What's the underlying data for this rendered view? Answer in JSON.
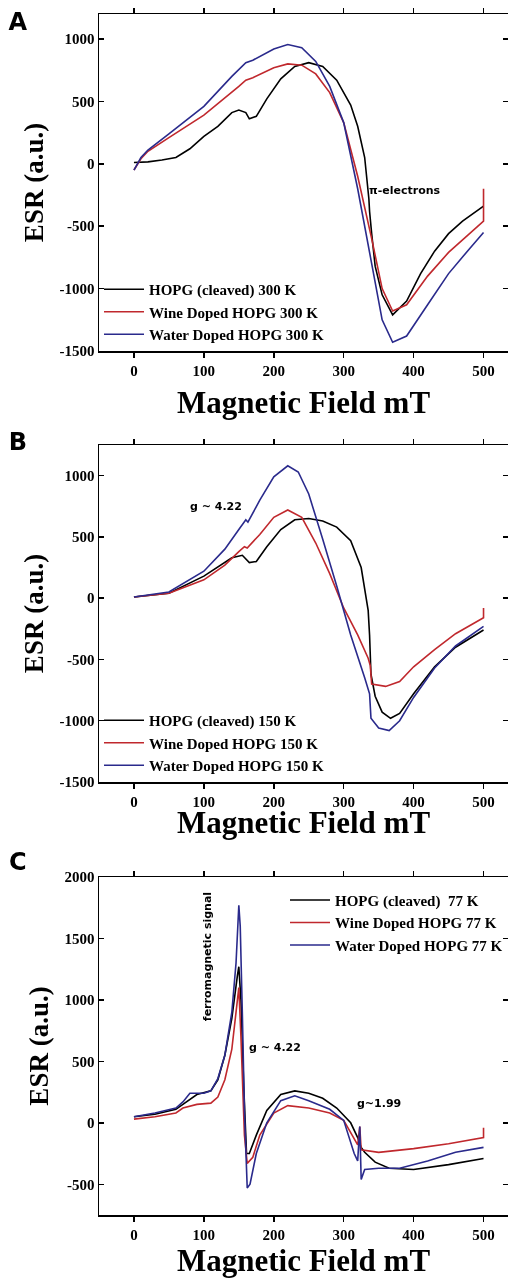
{
  "chart_data": [
    {
      "type": "line",
      "title": "A",
      "xlabel": "Magnetic Field mT",
      "ylabel": "ESR (a.u.)",
      "xlim": [
        -50,
        535
      ],
      "ylim": [
        -1500,
        1200
      ],
      "xticks": [
        0,
        100,
        200,
        300,
        400,
        500
      ],
      "yticks": [
        -1500,
        -1000,
        -500,
        0,
        500,
        1000
      ],
      "grid": false,
      "legend": "bottom left",
      "marker": "none",
      "line_style": "solid",
      "annotations": [
        "π-electrons"
      ],
      "series": [
        {
          "name": "HOPG (cleaved) 300 K",
          "color": "#000000",
          "x": [
            0,
            20,
            40,
            60,
            80,
            100,
            120,
            140,
            150,
            160,
            165,
            175,
            190,
            210,
            230,
            250,
            270,
            290,
            310,
            320,
            330,
            336,
            337,
            340,
            345,
            355,
            370,
            390,
            410,
            430,
            450,
            470,
            500
          ],
          "values": [
            10,
            15,
            30,
            50,
            120,
            220,
            300,
            410,
            430,
            410,
            360,
            380,
            520,
            680,
            780,
            810,
            780,
            670,
            470,
            300,
            50,
            -280,
            -380,
            -560,
            -820,
            -1050,
            -1210,
            -1100,
            -880,
            -700,
            -560,
            -460,
            -340
          ]
        },
        {
          "name": "Wine Doped HOPG 300 K",
          "color": "#c0282d",
          "x": [
            0,
            10,
            20,
            50,
            100,
            150,
            160,
            170,
            200,
            220,
            240,
            260,
            280,
            300,
            320,
            340,
            355,
            370,
            390,
            420,
            450,
            480,
            500,
            500
          ],
          "values": [
            -50,
            40,
            100,
            210,
            390,
            620,
            670,
            690,
            770,
            800,
            790,
            720,
            570,
            330,
            -100,
            -600,
            -1000,
            -1180,
            -1130,
            -900,
            -710,
            -560,
            -460,
            -200
          ]
        },
        {
          "name": "Water Doped HOPG 300 K",
          "color": "#2a2a8c",
          "x": [
            0,
            10,
            20,
            50,
            100,
            140,
            160,
            170,
            200,
            220,
            240,
            260,
            280,
            300,
            320,
            340,
            355,
            370,
            390,
            420,
            450,
            480,
            500
          ],
          "values": [
            -50,
            50,
            110,
            240,
            460,
            700,
            810,
            830,
            920,
            955,
            930,
            820,
            620,
            330,
            -200,
            -800,
            -1250,
            -1430,
            -1380,
            -1130,
            -880,
            -680,
            -550
          ]
        }
      ]
    },
    {
      "type": "line",
      "title": "B",
      "xlabel": "Magnetic Field mT",
      "ylabel": "ESR (a.u.)",
      "xlim": [
        -50,
        535
      ],
      "ylim": [
        -1500,
        1250
      ],
      "xticks": [
        0,
        100,
        200,
        300,
        400,
        500
      ],
      "yticks": [
        -1500,
        -1000,
        -500,
        0,
        500,
        1000
      ],
      "grid": false,
      "legend": "bottom left",
      "marker": "none",
      "line_style": "solid",
      "annotations": [
        "g ~ 4.22"
      ],
      "series": [
        {
          "name": "HOPG (cleaved) 150 K",
          "color": "#000000",
          "x": [
            0,
            50,
            100,
            140,
            155,
            165,
            175,
            190,
            210,
            230,
            250,
            270,
            290,
            310,
            325,
            335,
            337,
            339,
            345,
            355,
            367,
            380,
            400,
            430,
            460,
            500
          ],
          "values": [
            10,
            40,
            180,
            330,
            350,
            290,
            300,
            420,
            560,
            640,
            650,
            630,
            580,
            470,
            250,
            -100,
            -300,
            -620,
            -800,
            -930,
            -980,
            -940,
            -780,
            -560,
            -400,
            -260
          ]
        },
        {
          "name": "Wine Doped HOPG 150 K",
          "color": "#c0282d",
          "x": [
            0,
            50,
            100,
            130,
            150,
            158,
            162,
            180,
            200,
            220,
            240,
            260,
            280,
            300,
            320,
            335,
            338,
            340,
            360,
            380,
            400,
            430,
            460,
            500,
            500
          ],
          "values": [
            10,
            40,
            150,
            270,
            380,
            420,
            410,
            520,
            660,
            720,
            660,
            450,
            200,
            -80,
            -300,
            -490,
            -550,
            -700,
            -720,
            -680,
            -560,
            -420,
            -290,
            -160,
            -80
          ]
        },
        {
          "name": "Water Doped HOPG 150 K",
          "color": "#2a2a8c",
          "x": [
            0,
            50,
            100,
            130,
            150,
            160,
            163,
            180,
            200,
            220,
            235,
            250,
            270,
            290,
            310,
            330,
            337,
            339,
            350,
            365,
            380,
            400,
            430,
            460,
            500
          ],
          "values": [
            10,
            50,
            220,
            400,
            560,
            640,
            620,
            800,
            990,
            1080,
            1030,
            850,
            480,
            100,
            -300,
            -650,
            -780,
            -980,
            -1060,
            -1080,
            -1000,
            -810,
            -570,
            -390,
            -230
          ]
        }
      ]
    },
    {
      "type": "line",
      "title": "C",
      "xlabel": "Magnetic Field mT",
      "ylabel": "ESR (a.u.)",
      "xlim": [
        -50,
        535
      ],
      "ylim": [
        -750,
        2000
      ],
      "xticks": [
        0,
        100,
        200,
        300,
        400,
        500
      ],
      "yticks": [
        -500,
        0,
        500,
        1000,
        1500,
        2000
      ],
      "grid": false,
      "legend": "top right",
      "marker": "none",
      "line_style": "solid",
      "annotations": [
        "ferromagnetic signal",
        "g ~ 4.22",
        "g~1.99"
      ],
      "series": [
        {
          "name": "HOPG (cleaved)  77 K",
          "color": "#000000",
          "x": [
            0,
            30,
            60,
            70,
            90,
            110,
            120,
            130,
            140,
            148,
            150,
            153,
            157,
            161,
            165,
            175,
            190,
            210,
            230,
            250,
            270,
            290,
            310,
            320,
            325,
            330,
            345,
            365,
            400,
            450,
            500
          ],
          "values": [
            50,
            70,
            110,
            150,
            230,
            260,
            350,
            550,
            850,
            1200,
            1270,
            1000,
            300,
            -250,
            -250,
            -100,
            100,
            230,
            260,
            240,
            200,
            120,
            0,
            -120,
            -200,
            -240,
            -320,
            -370,
            -380,
            -340,
            -290
          ]
        },
        {
          "name": "Wine Doped HOPG 77 K",
          "color": "#c0282d",
          "x": [
            0,
            30,
            60,
            70,
            90,
            110,
            120,
            130,
            140,
            148,
            150,
            153,
            158,
            162,
            170,
            180,
            200,
            220,
            250,
            280,
            300,
            320,
            323,
            325,
            350,
            400,
            450,
            500,
            500
          ],
          "values": [
            30,
            50,
            80,
            120,
            150,
            160,
            210,
            350,
            600,
            1000,
            1100,
            700,
            -100,
            -330,
            -280,
            -100,
            80,
            140,
            120,
            80,
            20,
            -180,
            -30,
            -220,
            -240,
            -210,
            -170,
            -120,
            -40
          ]
        },
        {
          "name": "Water Doped HOPG 77 K",
          "color": "#2a2a8c",
          "x": [
            0,
            30,
            60,
            70,
            80,
            100,
            110,
            120,
            130,
            140,
            146,
            150,
            152,
            155,
            158,
            162,
            166,
            175,
            190,
            210,
            230,
            250,
            280,
            300,
            315,
            320,
            323,
            325,
            330,
            350,
            380,
            420,
            460,
            500
          ],
          "values": [
            50,
            80,
            120,
            170,
            240,
            240,
            260,
            360,
            550,
            900,
            1300,
            1770,
            1600,
            900,
            100,
            -530,
            -500,
            -250,
            0,
            180,
            220,
            180,
            110,
            20,
            -250,
            -310,
            -30,
            -460,
            -380,
            -370,
            -370,
            -310,
            -240,
            -200
          ]
        }
      ]
    }
  ]
}
